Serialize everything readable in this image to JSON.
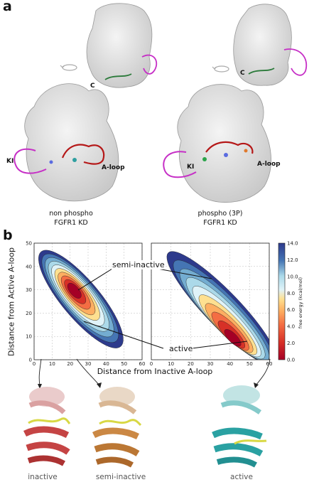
{
  "figure": {
    "panel_a": {
      "letter": "a",
      "left_caption": [
        "non phospho",
        "FGFR1 KD"
      ],
      "right_caption": [
        "phospho (3P)",
        "FGFR1 KD"
      ],
      "labels": {
        "c_left": "C",
        "c_right": "C",
        "aloop_left": "A-loop",
        "aloop_right": "A-loop",
        "ki_left": "KI",
        "ki_right": "KI"
      }
    },
    "panel_b": {
      "letter": "b",
      "xlabel": "Distance from Inactive A-loop",
      "ylabel": "Distance from Active A-loop",
      "annotations": {
        "semi_inactive": "semi-inactive",
        "active": "active"
      },
      "state_labels": [
        "inactive",
        "semi-inactive",
        "active"
      ],
      "colors": {
        "inactive": "#c23b3b",
        "semi_inactive": "#c9823b",
        "active": "#1f9c9e",
        "aloop": "#d6d63a"
      }
    }
  },
  "chart_data": {
    "type": "heatmap",
    "xlabel": "Distance from Inactive A-loop",
    "ylabel": "Distance from Active A-loop",
    "xlim": [
      0,
      60
    ],
    "ylim": [
      0,
      50
    ],
    "xticks": [
      0,
      10,
      20,
      30,
      40,
      50,
      60
    ],
    "yticks": [
      0,
      10,
      20,
      30,
      40,
      50
    ],
    "grid": true,
    "colorbar": {
      "label": "free energy  (kcal/mol)",
      "min": 0.0,
      "max": 14.0,
      "ticks": [
        "0.0",
        "2.0",
        "4.0",
        "6.0",
        "8.0",
        "10.0",
        "12.0",
        "14.0"
      ]
    },
    "panels": [
      {
        "name": "non phospho",
        "minimum": [
          22,
          30
        ]
      },
      {
        "name": "phospho (3P)",
        "minimum": [
          42,
          8
        ]
      }
    ]
  }
}
